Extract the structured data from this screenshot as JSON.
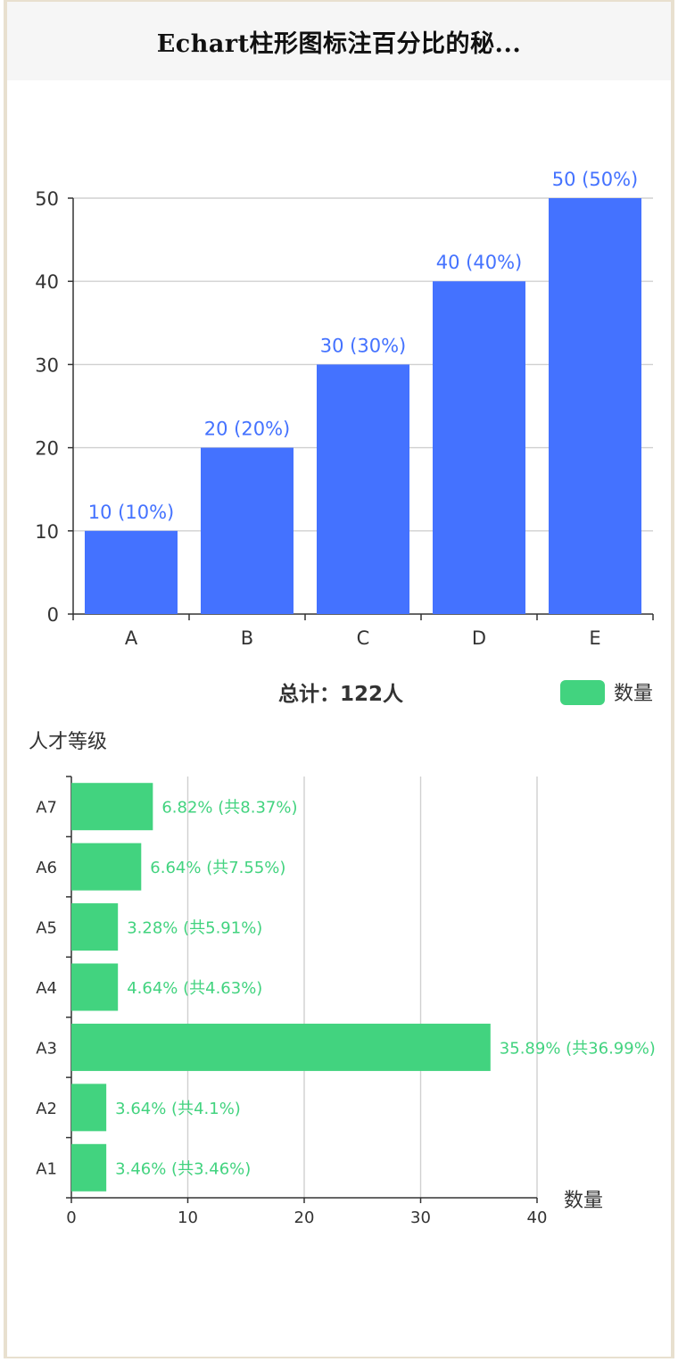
{
  "header": {
    "title": "Echart柱形图标注百分比的秘..."
  },
  "chart_data": [
    {
      "type": "bar",
      "categories": [
        "A",
        "B",
        "C",
        "D",
        "E"
      ],
      "values": [
        10,
        20,
        30,
        40,
        50
      ],
      "data_labels": [
        "10 (10%)",
        "20 (20%)",
        "30 (30%)",
        "40 (40%)",
        "50 (50%)"
      ],
      "ylim": [
        0,
        50
      ],
      "yticks": [
        0,
        10,
        20,
        30,
        40,
        50
      ],
      "color": "#4472ff",
      "grid": true
    },
    {
      "type": "bar",
      "orientation": "horizontal",
      "title": "总计：",
      "title_bold": "122人",
      "categories": [
        "A1",
        "A2",
        "A3",
        "A4",
        "A5",
        "A6",
        "A7"
      ],
      "values": [
        3,
        3,
        36,
        4,
        4,
        6,
        7
      ],
      "data_labels": [
        "3.46% (共3.46%)",
        "3.64% (共4.1%)",
        "35.89% (共36.99%)",
        "4.64% (共4.63%)",
        "3.28% (共5.91%)",
        "6.64% (共7.55%)",
        "6.82% (共8.37%)"
      ],
      "series": [
        {
          "name": "数量",
          "values": [
            3,
            3,
            36,
            4,
            4,
            6,
            7
          ]
        }
      ],
      "ylabel": "人才等级",
      "xlabel": "数量",
      "xlim": [
        0,
        40
      ],
      "xticks": [
        0,
        10,
        20,
        30,
        40
      ],
      "color": "#42d37f",
      "legend": "top-right",
      "grid": true
    }
  ]
}
